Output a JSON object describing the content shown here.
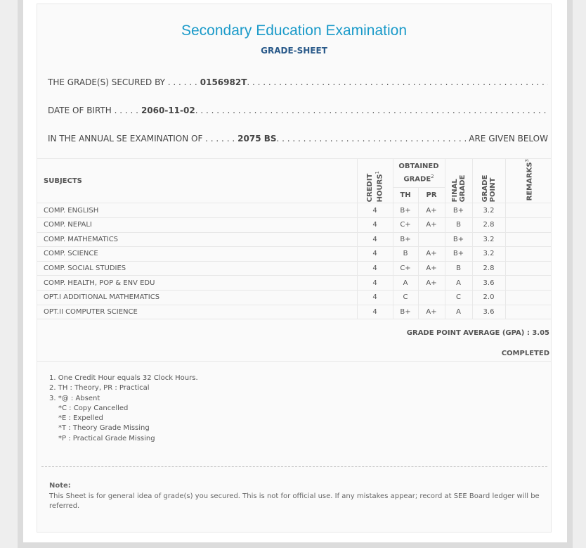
{
  "header": {
    "title": "Secondary Education Examination",
    "subtitle": "GRADE-SHEET"
  },
  "info": {
    "secured_label": "THE GRADE(S) SECURED BY . . . . . .",
    "symbol": "0156982T",
    "dots": " . . . . . . . . . . . . . . . . . . . . . . . . . . . . . . . . . . . . . . . . . . . . . . . . . . . . . . . . . . . . . . . . . . . . . . . . . . . . . . . . .",
    "dob_label": "DATE OF BIRTH . . . . .",
    "dob": "2060-11-02",
    "exam_label": "IN THE ANNUAL SE EXAMINATION OF . . . . . .",
    "exam_year": "2075 BS",
    "exam_dots": " . . . . . . . . . . . . . . . . . . . . . . . . . . . . . . . . . . . . . . . . . . . . . . . . . . . . . . . . . . .",
    "exam_suffix": "ARE GIVEN BELOW"
  },
  "table": {
    "headers": {
      "subjects": "SUBJECTS",
      "credit": "CREDIT HOURS",
      "credit_sup": "1",
      "obtained": "OBTAINED GRADE",
      "obtained_sup": "2",
      "th": "TH",
      "pr": "PR",
      "final": "FINAL GRADE",
      "gp": "GRADE POINT",
      "remarks": "REMARKS",
      "remarks_sup": "3"
    },
    "rows": [
      {
        "subject": "COMP. ENGLISH",
        "credit": "4",
        "th": "B+",
        "pr": "A+",
        "final": "B+",
        "gp": "3.2",
        "remarks": ""
      },
      {
        "subject": "COMP. NEPALI",
        "credit": "4",
        "th": "C+",
        "pr": "A+",
        "final": "B",
        "gp": "2.8",
        "remarks": ""
      },
      {
        "subject": "COMP. MATHEMATICS",
        "credit": "4",
        "th": "B+",
        "pr": "",
        "final": "B+",
        "gp": "3.2",
        "remarks": ""
      },
      {
        "subject": "COMP. SCIENCE",
        "credit": "4",
        "th": "B",
        "pr": "A+",
        "final": "B+",
        "gp": "3.2",
        "remarks": ""
      },
      {
        "subject": "COMP. SOCIAL STUDIES",
        "credit": "4",
        "th": "C+",
        "pr": "A+",
        "final": "B",
        "gp": "2.8",
        "remarks": ""
      },
      {
        "subject": "COMP. HEALTH, POP & ENV EDU",
        "credit": "4",
        "th": "A",
        "pr": "A+",
        "final": "A",
        "gp": "3.6",
        "remarks": ""
      },
      {
        "subject": "OPT.I ADDITIONAL MATHEMATICS",
        "credit": "4",
        "th": "C",
        "pr": "",
        "final": "C",
        "gp": "2.0",
        "remarks": ""
      },
      {
        "subject": "OPT.II COMPUTER SCIENCE",
        "credit": "4",
        "th": "B+",
        "pr": "A+",
        "final": "A",
        "gp": "3.6",
        "remarks": ""
      }
    ]
  },
  "summary": {
    "gpa": "GRADE POINT AVERAGE (GPA) : 3.05",
    "status": "COMPLETED"
  },
  "footnotes": [
    "1. One Credit Hour equals 32 Clock Hours.",
    "2. TH : Theory, PR : Practical",
    "3. *@ : Absent",
    "*C : Copy Cancelled",
    "*E : Expelled",
    "*T : Theory Grade Missing",
    "*P : Practical Grade Missing"
  ],
  "note": {
    "label": "Note:",
    "text": "This Sheet is for general idea of grade(s) you secured. This is not for official use. If any mistakes appear; record at SEE Board ledger will be referred."
  }
}
